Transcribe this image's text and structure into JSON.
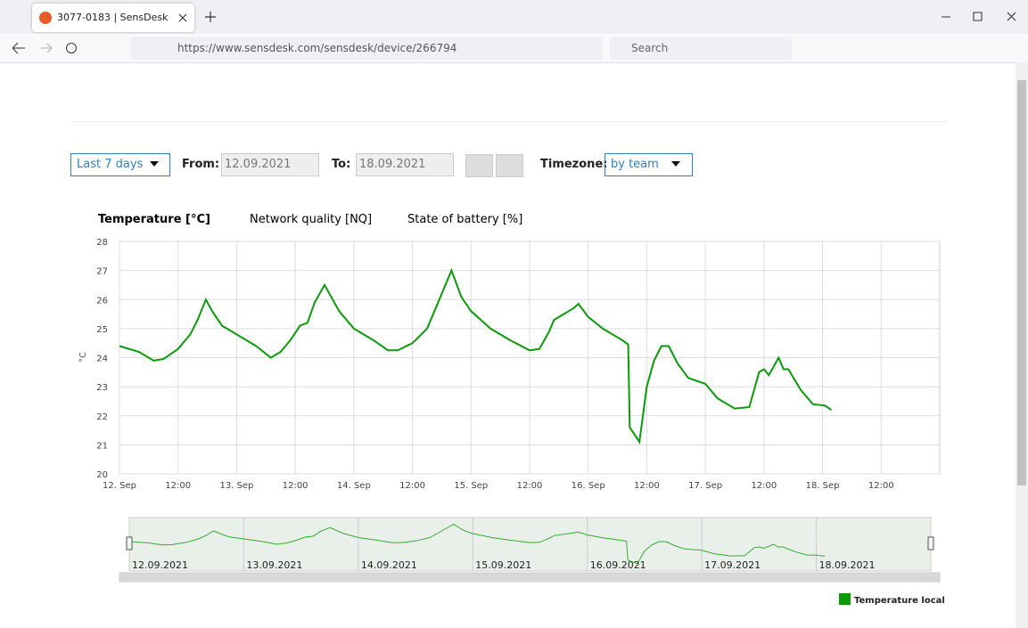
{
  "browser": {
    "tab_title": "3077-0183 | SensDesk",
    "url": "https://www.sensdesk.com/sensdesk/device/266794",
    "search_placeholder": "Search"
  },
  "controls": {
    "range": "Last 7 days",
    "from_label": "From:",
    "from": "12.09.2021",
    "to_label": "To:",
    "to": "18.09.2021",
    "timezone_label": "Timezone:",
    "timezone": "by team"
  },
  "tabs": [
    "Temperature [°C]",
    "Network quality [NQ]",
    "State of battery [%]"
  ],
  "chart_data": {
    "type": "line",
    "y_label": "°C",
    "x": [
      0,
      4,
      7,
      9,
      12,
      14.5,
      16,
      17.7,
      19,
      21,
      24,
      28,
      31,
      33,
      35,
      37,
      38.5,
      40,
      42,
      43,
      45,
      48,
      52,
      55,
      57,
      60,
      63,
      65,
      67,
      68,
      70,
      72,
      76,
      80,
      84,
      86,
      88,
      89,
      91,
      93,
      94,
      96,
      99,
      103,
      104.2,
      104.5,
      106.5,
      108,
      109.5,
      111,
      112.5,
      114.3,
      116.5,
      120,
      122.5,
      126,
      129,
      131,
      132,
      133,
      135,
      136,
      137,
      139.5,
      142,
      144.5,
      145.8
    ],
    "series": [
      {
        "name": "Temperature local",
        "color": "#0a9a0a",
        "values": [
          24.4,
          24.2,
          23.9,
          23.95,
          24.3,
          24.8,
          25.3,
          26.0,
          25.6,
          25.1,
          24.8,
          24.4,
          24.0,
          24.2,
          24.6,
          25.1,
          25.2,
          25.9,
          26.5,
          26.2,
          25.6,
          25.0,
          24.6,
          24.25,
          24.25,
          24.5,
          25.0,
          25.8,
          26.6,
          27.0,
          26.1,
          25.6,
          25.0,
          24.6,
          24.25,
          24.3,
          24.9,
          25.3,
          25.5,
          25.7,
          25.85,
          25.4,
          25.0,
          24.6,
          24.45,
          21.6,
          21.1,
          23.0,
          23.9,
          24.4,
          24.4,
          23.8,
          23.3,
          23.1,
          22.6,
          22.25,
          22.3,
          23.5,
          23.6,
          23.4,
          24.0,
          23.6,
          23.6,
          22.9,
          22.4,
          22.35,
          22.2
        ]
      }
    ],
    "xlim": [
      0,
      168
    ],
    "xticks": [
      {
        "value": 0,
        "label": "12. Sep"
      },
      {
        "value": 12,
        "label": "12:00"
      },
      {
        "value": 24,
        "label": "13. Sep"
      },
      {
        "value": 36,
        "label": "12:00"
      },
      {
        "value": 48,
        "label": "14. Sep"
      },
      {
        "value": 60,
        "label": "12:00"
      },
      {
        "value": 72,
        "label": "15. Sep"
      },
      {
        "value": 84,
        "label": "12:00"
      },
      {
        "value": 96,
        "label": "16. Sep"
      },
      {
        "value": 108,
        "label": "12:00"
      },
      {
        "value": 120,
        "label": "17. Sep"
      },
      {
        "value": 132,
        "label": "12:00"
      },
      {
        "value": 144,
        "label": "18. Sep"
      },
      {
        "value": 156,
        "label": "12:00"
      }
    ],
    "ylim": [
      20,
      28
    ],
    "yticks": [
      20,
      21,
      22,
      23,
      24,
      25,
      26,
      27,
      28
    ],
    "grid": true,
    "navigator_xticks": [
      {
        "value": 0,
        "label": "12.09.2021"
      },
      {
        "value": 24,
        "label": "13.09.2021"
      },
      {
        "value": 48,
        "label": "14.09.2021"
      },
      {
        "value": 72,
        "label": "15.09.2021"
      },
      {
        "value": 96,
        "label": "16.09.2021"
      },
      {
        "value": 120,
        "label": "17.09.2021"
      },
      {
        "value": 144,
        "label": "18.09.2021"
      }
    ]
  }
}
